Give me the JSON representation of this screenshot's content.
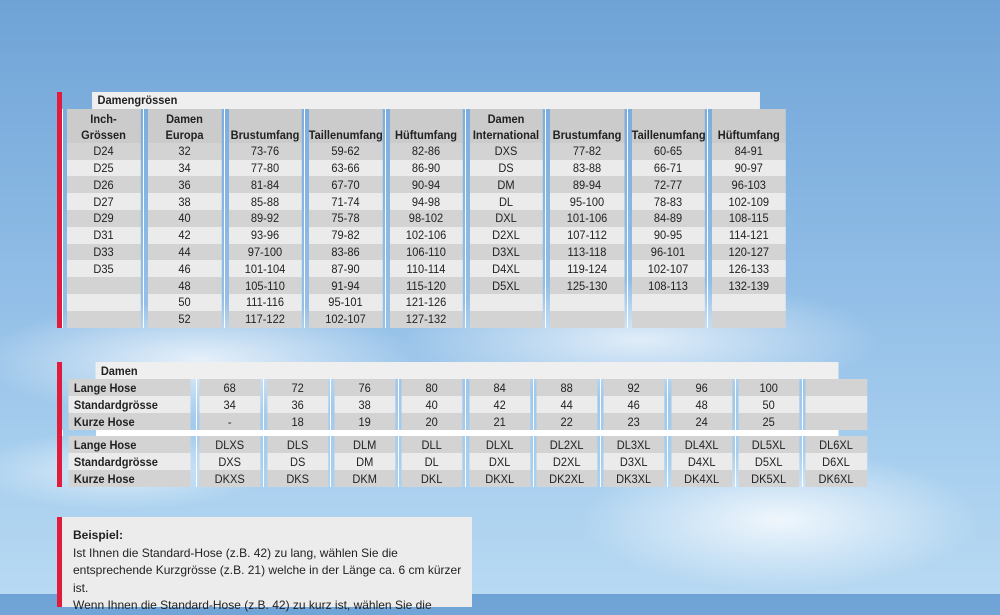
{
  "damengroessen": {
    "title": "Damengrössen",
    "headers": [
      [
        "Inch-",
        "Grössen"
      ],
      [
        "Damen",
        "Europa"
      ],
      [
        "",
        "Brustumfang"
      ],
      [
        "",
        "Taillenumfang"
      ],
      [
        "",
        "Hüftumfang"
      ],
      [
        "Damen",
        "International"
      ],
      [
        "",
        "Brustumfang"
      ],
      [
        "",
        "Taillenumfang"
      ],
      [
        "",
        "Hüftumfang"
      ]
    ],
    "rows": [
      [
        "D24",
        "32",
        "73-76",
        "59-62",
        "82-86",
        "DXS",
        "77-82",
        "60-65",
        "84-91"
      ],
      [
        "D25",
        "34",
        "77-80",
        "63-66",
        "86-90",
        "DS",
        "83-88",
        "66-71",
        "90-97"
      ],
      [
        "D26",
        "36",
        "81-84",
        "67-70",
        "90-94",
        "DM",
        "89-94",
        "72-77",
        "96-103"
      ],
      [
        "D27",
        "38",
        "85-88",
        "71-74",
        "94-98",
        "DL",
        "95-100",
        "78-83",
        "102-109"
      ],
      [
        "D29",
        "40",
        "89-92",
        "75-78",
        "98-102",
        "DXL",
        "101-106",
        "84-89",
        "108-115"
      ],
      [
        "D31",
        "42",
        "93-96",
        "79-82",
        "102-106",
        "D2XL",
        "107-112",
        "90-95",
        "114-121"
      ],
      [
        "D33",
        "44",
        "97-100",
        "83-86",
        "106-110",
        "D3XL",
        "113-118",
        "96-101",
        "120-127"
      ],
      [
        "D35",
        "46",
        "101-104",
        "87-90",
        "110-114",
        "D4XL",
        "119-124",
        "102-107",
        "126-133"
      ],
      [
        "",
        "48",
        "105-110",
        "91-94",
        "115-120",
        "D5XL",
        "125-130",
        "108-113",
        "132-139"
      ],
      [
        "",
        "50",
        "111-116",
        "95-101",
        "121-126",
        "",
        "",
        "",
        ""
      ],
      [
        "",
        "52",
        "117-122",
        "102-107",
        "127-132",
        "",
        "",
        "",
        ""
      ]
    ]
  },
  "damen": {
    "title": "Damen",
    "group1": [
      [
        "Lange Hose",
        "68",
        "72",
        "76",
        "80",
        "84",
        "88",
        "92",
        "96",
        "100",
        ""
      ],
      [
        "Standardgrösse",
        "34",
        "36",
        "38",
        "40",
        "42",
        "44",
        "46",
        "48",
        "50",
        ""
      ],
      [
        "Kurze Hose",
        "-",
        "18",
        "19",
        "20",
        "21",
        "22",
        "23",
        "24",
        "25",
        ""
      ]
    ],
    "group2": [
      [
        "Lange Hose",
        "DLXS",
        "DLS",
        "DLM",
        "DLL",
        "DLXL",
        "DL2XL",
        "DL3XL",
        "DL4XL",
        "DL5XL",
        "DL6XL"
      ],
      [
        "Standardgrösse",
        "DXS",
        "DS",
        "DM",
        "DL",
        "DXL",
        "D2XL",
        "D3XL",
        "D4XL",
        "D5XL",
        "D6XL"
      ],
      [
        "Kurze Hose",
        "DKXS",
        "DKS",
        "DKM",
        "DKL",
        "DKXL",
        "DK2XL",
        "DK3XL",
        "DK4XL",
        "DK5XL",
        "DK6XL"
      ]
    ]
  },
  "beispiel": {
    "title": "Beispiel:",
    "lines": [
      "Ist Ihnen die Standard-Hose (z.B. 42) zu lang, wählen Sie die",
      "entsprechende Kurzgrösse (z.B. 21) welche in der Länge ca. 6 cm kürzer ist.",
      "Wenn Ihnen die Standard-Hose (z.B. 42) zu kurz ist, wählen Sie die"
    ]
  },
  "colors": {
    "accent": "#e01b3c",
    "row_dark": "#d3d3d3",
    "row_light": "#ebebeb"
  }
}
